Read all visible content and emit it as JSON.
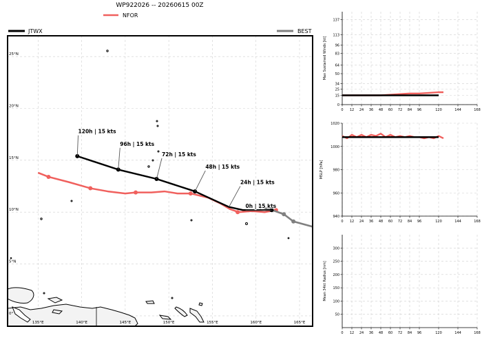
{
  "title": "WP922026 -- 20260615 00Z",
  "legend": {
    "nfor": {
      "label": "NFOR",
      "color": "#f0605d"
    },
    "jtwx": {
      "label": "JTWX",
      "color": "#000000"
    },
    "best": {
      "label": "BEST",
      "color": "#808080"
    }
  },
  "chart_data": [
    {
      "type": "line",
      "panel": "track-map",
      "lon_range": [
        131.5,
        166.5
      ],
      "lat_range": [
        -1.0,
        27.0
      ],
      "lat_ticks": [
        "0°",
        "5°N",
        "10°N",
        "15°N",
        "20°N",
        "25°N"
      ],
      "lat_tick_values": [
        0,
        5,
        10,
        15,
        20,
        25
      ],
      "lon_ticks": [
        "135°E",
        "140°E",
        "145°E",
        "150°E",
        "155°E",
        "160°E",
        "165°E"
      ],
      "lon_tick_values": [
        135,
        140,
        145,
        150,
        155,
        160,
        165
      ],
      "grid": true,
      "series": [
        {
          "name": "NFOR",
          "points": [
            [
              135.0,
              13.8
            ],
            [
              136.2,
              13.4
            ],
            [
              138.5,
              12.9
            ],
            [
              141.0,
              12.3
            ],
            [
              143.0,
              12.0
            ],
            [
              145.0,
              11.8
            ],
            [
              146.2,
              11.9
            ],
            [
              148.0,
              11.9
            ],
            [
              149.5,
              12.0
            ],
            [
              151.0,
              11.8
            ],
            [
              152.5,
              11.8
            ],
            [
              154.5,
              11.4
            ],
            [
              156.0,
              10.8
            ],
            [
              157.0,
              10.3
            ],
            [
              158.0,
              10.0
            ],
            [
              159.5,
              10.1
            ],
            [
              161.0,
              10.0
            ],
            [
              162.3,
              10.2
            ]
          ],
          "markers": [
            [
              136.2,
              13.4
            ],
            [
              141.0,
              12.3
            ],
            [
              146.2,
              11.9
            ],
            [
              152.5,
              11.8
            ],
            [
              157.9,
              10.0
            ],
            [
              162.3,
              10.2
            ]
          ]
        },
        {
          "name": "JTWX",
          "points": [
            [
              139.5,
              15.4
            ],
            [
              144.2,
              14.1
            ],
            [
              148.6,
              13.2
            ],
            [
              153.0,
              12.0
            ],
            [
              156.9,
              10.5
            ],
            [
              158.5,
              10.2
            ],
            [
              161.8,
              10.2
            ]
          ],
          "markers": [
            [
              139.5,
              15.4
            ],
            [
              144.2,
              14.1
            ],
            [
              148.6,
              13.2
            ],
            [
              153.0,
              12.0
            ],
            [
              161.8,
              10.2
            ]
          ]
        },
        {
          "name": "BEST",
          "points": [
            [
              160.5,
              10.5
            ],
            [
              161.5,
              10.3
            ],
            [
              162.2,
              10.1
            ],
            [
              163.2,
              9.8
            ],
            [
              164.3,
              9.1
            ],
            [
              166.5,
              8.6
            ]
          ],
          "markers": [
            [
              160.5,
              10.5
            ],
            [
              163.2,
              9.8
            ],
            [
              164.3,
              9.1
            ]
          ]
        }
      ],
      "annotations": [
        {
          "text": "120h | 15 kts",
          "lon": 139.5,
          "lat": 15.4,
          "label_lon": 139.6,
          "label_lat": 17.4
        },
        {
          "text": "96h | 15 kts",
          "lon": 144.2,
          "lat": 14.1,
          "label_lon": 144.4,
          "label_lat": 16.2
        },
        {
          "text": "72h | 15 kts",
          "lon": 148.6,
          "lat": 13.2,
          "label_lon": 149.2,
          "label_lat": 15.2
        },
        {
          "text": "48h | 15 kts",
          "lon": 153.0,
          "lat": 12.0,
          "label_lon": 154.2,
          "label_lat": 14.0
        },
        {
          "text": "24h | 15 kts",
          "lon": 156.9,
          "lat": 10.5,
          "label_lon": 158.2,
          "label_lat": 12.5
        },
        {
          "text": "0h | 15 kts",
          "lon": 161.8,
          "lat": 10.2,
          "label_lon": 158.8,
          "label_lat": 10.2
        }
      ]
    },
    {
      "type": "line",
      "panel": "intensity",
      "xlim": [
        0,
        168
      ],
      "ylim": [
        0,
        150
      ],
      "xticks": [
        0,
        12,
        24,
        36,
        48,
        60,
        72,
        84,
        96,
        120,
        144,
        168
      ],
      "yticks": [
        0,
        15,
        25,
        34,
        50,
        64,
        83,
        96,
        113,
        137
      ],
      "ylabel": "Max Sustained Winds [kt]",
      "grid": true,
      "series": [
        {
          "name": "NFOR",
          "x": [
            0,
            12,
            24,
            36,
            48,
            60,
            72,
            84,
            96,
            108,
            120,
            126
          ],
          "y": [
            15,
            15,
            15,
            15,
            15,
            16,
            17,
            18,
            18,
            19,
            20,
            20
          ]
        },
        {
          "name": "JTWX",
          "x": [
            0,
            24,
            48,
            72,
            96,
            120
          ],
          "y": [
            15,
            15,
            15,
            15,
            15,
            15
          ]
        }
      ]
    },
    {
      "type": "line",
      "panel": "pressure",
      "xlim": [
        0,
        168
      ],
      "ylim": [
        940,
        1020
      ],
      "xticks": [
        0,
        12,
        24,
        36,
        48,
        60,
        72,
        84,
        96,
        120,
        144,
        168
      ],
      "yticks": [
        940,
        960,
        980,
        1000,
        1020
      ],
      "ylabel": "MSLP [hPa]",
      "grid": true,
      "series": [
        {
          "name": "NFOR",
          "x": [
            0,
            6,
            12,
            18,
            24,
            30,
            36,
            42,
            48,
            54,
            60,
            66,
            72,
            78,
            84,
            90,
            96,
            102,
            108,
            114,
            120,
            126
          ],
          "y": [
            1009,
            1007,
            1010,
            1008,
            1010,
            1008,
            1010,
            1009,
            1011,
            1008,
            1010,
            1008,
            1009,
            1008,
            1009,
            1008,
            1008,
            1007,
            1008,
            1007,
            1009,
            1007
          ]
        },
        {
          "name": "JTWX",
          "x": [
            0,
            24,
            48,
            72,
            96,
            120
          ],
          "y": [
            1008,
            1008,
            1008,
            1008,
            1008,
            1008
          ]
        }
      ]
    },
    {
      "type": "line",
      "panel": "radius",
      "xlim": [
        0,
        168
      ],
      "ylim": [
        0,
        350
      ],
      "xticks": [
        0,
        12,
        24,
        36,
        48,
        60,
        72,
        84,
        96,
        120,
        144,
        168
      ],
      "yticks": [
        50,
        100,
        150,
        200,
        250,
        300
      ],
      "ylabel": "Mean 34kt Radius [nm]",
      "grid": true,
      "series": []
    }
  ]
}
